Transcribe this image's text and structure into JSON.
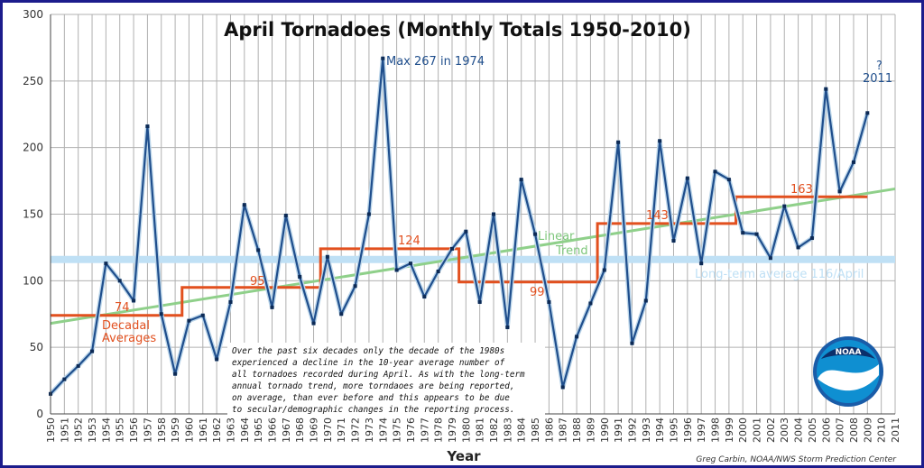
{
  "chart_data": {
    "type": "line",
    "title": "April Tornadoes (Monthly Totals 1950-2010)",
    "xlabel": "Year",
    "ylabel": "",
    "ylim": [
      0,
      300
    ],
    "yticks": [
      0,
      50,
      100,
      150,
      200,
      250,
      300
    ],
    "xlim": [
      1950,
      2011
    ],
    "grid": true,
    "x": [
      1950,
      1951,
      1952,
      1953,
      1954,
      1955,
      1956,
      1957,
      1958,
      1959,
      1960,
      1961,
      1962,
      1963,
      1964,
      1965,
      1966,
      1967,
      1968,
      1969,
      1970,
      1971,
      1972,
      1973,
      1974,
      1975,
      1976,
      1977,
      1978,
      1979,
      1980,
      1981,
      1982,
      1983,
      1984,
      1985,
      1986,
      1987,
      1988,
      1989,
      1990,
      1991,
      1992,
      1993,
      1994,
      1995,
      1996,
      1997,
      1998,
      1999,
      2000,
      2001,
      2002,
      2003,
      2004,
      2005,
      2006,
      2007,
      2008,
      2009
    ],
    "series": [
      {
        "values": [
          15,
          26,
          36,
          47,
          113,
          100,
          85,
          216,
          75,
          30,
          70,
          74,
          41,
          84,
          157,
          123,
          80,
          149,
          103,
          68,
          118,
          75,
          96,
          150,
          267,
          108,
          113,
          88,
          107,
          124,
          137,
          84,
          150,
          65,
          176,
          135,
          84,
          20,
          58,
          83,
          108,
          204,
          53,
          85,
          205,
          130,
          177,
          113,
          182,
          176,
          136,
          135,
          117,
          156,
          125,
          132,
          244,
          167,
          189,
          226
        ]
      },
      {
        "name": "Decadal Averages",
        "values": [
          74,
          74,
          74,
          74,
          74,
          74,
          74,
          74,
          74,
          74,
          95,
          95,
          95,
          95,
          95,
          95,
          95,
          95,
          95,
          95,
          124,
          124,
          124,
          124,
          124,
          124,
          124,
          124,
          124,
          124,
          99,
          99,
          99,
          99,
          99,
          99,
          99,
          99,
          99,
          99,
          143,
          143,
          143,
          143,
          143,
          143,
          143,
          143,
          143,
          143,
          163,
          163,
          163,
          163,
          163,
          163,
          163,
          163,
          163,
          163
        ]
      },
      {
        "name": "Linear Trend",
        "start": {
          "x": 1950,
          "y": 68
        },
        "end": {
          "x": 2011,
          "y": 169
        }
      },
      {
        "name": "Long-term average 116/April",
        "value": 116
      }
    ],
    "annotations": {
      "max": "Max 267 in 1974",
      "q": "?",
      "y2011": "2011",
      "dec74": "74",
      "dec95": "95",
      "dec124": "124",
      "dec99": "99",
      "dec143": "143",
      "dec163": "163",
      "decadal1": "Decadal",
      "decadal2": "Averages",
      "linear1": "Linear",
      "linear2": "Trend",
      "longterm": "Long-term average 116/April"
    },
    "note": [
      "Over the past six decades only the decade of the 1980s",
      "experienced a decline in the 10-year average number of",
      "all tornadoes recorded during April. As with the long-term",
      "annual tornado trend, more torndaoes are being reported,",
      "on average, than ever before and this appears to be due",
      "to secular/demographic changes in the reporting process."
    ],
    "credit": "Greg Carbin, NOAA/NWS Storm Prediction Center",
    "logo_text": "NOAA",
    "colors": {
      "series": "#1f4e8c",
      "decadal": "#e2501f",
      "trend": "#8fd08a",
      "average": "#bfe0f5",
      "grid": "#b0b0b0",
      "frame": "#1c1c8c"
    }
  }
}
